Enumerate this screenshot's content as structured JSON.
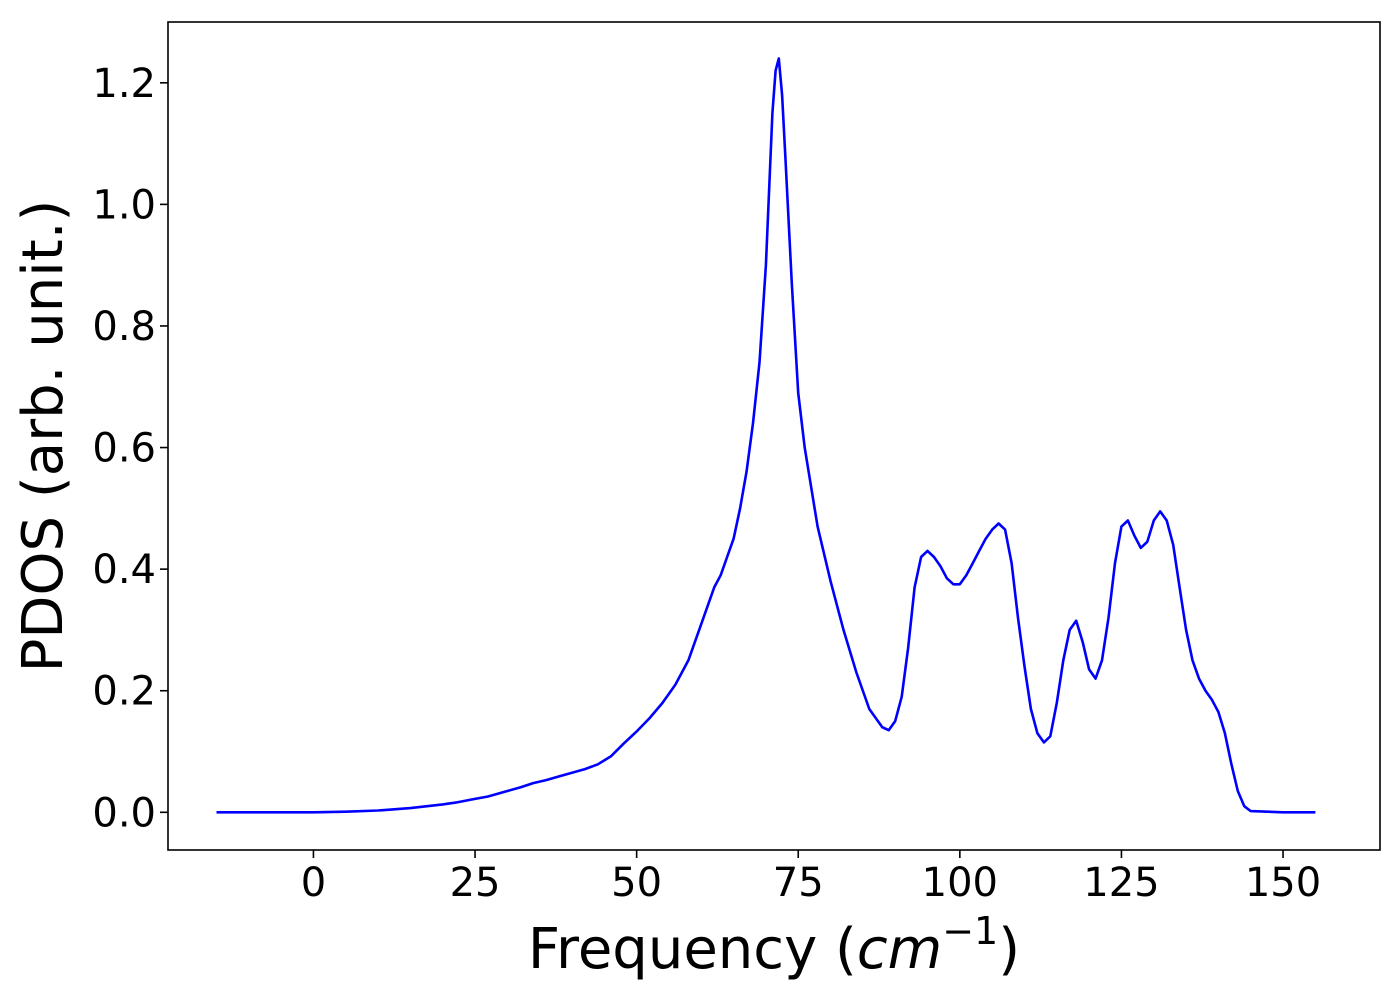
{
  "chart_data": {
    "type": "line",
    "title": "",
    "xlabel": "Frequency (",
    "xlabel_math": "cm",
    "xlabel_exp": "−1",
    "xlabel_close": ")",
    "ylabel": "PDOS (arb. unit.)",
    "xlim": [
      -22.5,
      165
    ],
    "ylim": [
      -0.062,
      1.3
    ],
    "xticks": [
      0,
      25,
      50,
      75,
      100,
      125,
      150
    ],
    "xtick_labels": [
      "0",
      "25",
      "50",
      "75",
      "100",
      "125",
      "150"
    ],
    "yticks": [
      0.0,
      0.2,
      0.4,
      0.6,
      0.8,
      1.0,
      1.2
    ],
    "ytick_labels": [
      "0.0",
      "0.2",
      "0.4",
      "0.6",
      "0.8",
      "1.0",
      "1.2"
    ],
    "grid": false,
    "line_color": "#0000ff",
    "series": [
      {
        "x": [
          -15,
          0,
          5,
          10,
          15,
          20,
          22,
          25,
          27,
          30,
          32,
          34,
          36,
          38,
          40,
          42,
          44,
          46,
          48,
          50,
          52,
          54,
          56,
          58,
          60,
          62,
          63,
          64,
          65,
          66,
          67,
          68,
          69,
          70,
          71,
          71.5,
          72,
          72.5,
          73,
          74,
          75,
          76,
          78,
          80,
          82,
          84,
          86,
          88,
          89,
          90,
          91,
          92,
          93,
          94,
          95,
          96,
          97,
          98,
          99,
          100,
          101,
          102,
          103,
          104,
          105,
          106,
          107,
          108,
          109,
          110,
          111,
          112,
          113,
          114,
          115,
          116,
          117,
          118,
          119,
          120,
          121,
          122,
          123,
          124,
          125,
          126,
          127,
          128,
          129,
          130,
          131,
          132,
          133,
          134,
          135,
          136,
          137,
          138,
          139,
          140,
          141,
          142,
          143,
          144,
          145,
          150,
          155
        ],
        "y": [
          0.0,
          0.0,
          0.001,
          0.003,
          0.007,
          0.013,
          0.016,
          0.022,
          0.026,
          0.035,
          0.041,
          0.048,
          0.053,
          0.059,
          0.065,
          0.071,
          0.079,
          0.092,
          0.113,
          0.133,
          0.155,
          0.18,
          0.21,
          0.25,
          0.31,
          0.37,
          0.39,
          0.42,
          0.45,
          0.5,
          0.56,
          0.64,
          0.74,
          0.9,
          1.15,
          1.22,
          1.24,
          1.18,
          1.08,
          0.87,
          0.69,
          0.6,
          0.47,
          0.38,
          0.3,
          0.23,
          0.17,
          0.14,
          0.135,
          0.15,
          0.19,
          0.27,
          0.37,
          0.42,
          0.43,
          0.42,
          0.405,
          0.385,
          0.375,
          0.375,
          0.39,
          0.41,
          0.43,
          0.45,
          0.465,
          0.475,
          0.465,
          0.41,
          0.32,
          0.24,
          0.17,
          0.13,
          0.115,
          0.125,
          0.18,
          0.25,
          0.3,
          0.315,
          0.28,
          0.235,
          0.22,
          0.25,
          0.32,
          0.41,
          0.47,
          0.48,
          0.455,
          0.435,
          0.445,
          0.48,
          0.495,
          0.48,
          0.44,
          0.37,
          0.3,
          0.25,
          0.22,
          0.2,
          0.185,
          0.165,
          0.13,
          0.08,
          0.035,
          0.01,
          0.002,
          0.0,
          0.0
        ]
      }
    ]
  }
}
